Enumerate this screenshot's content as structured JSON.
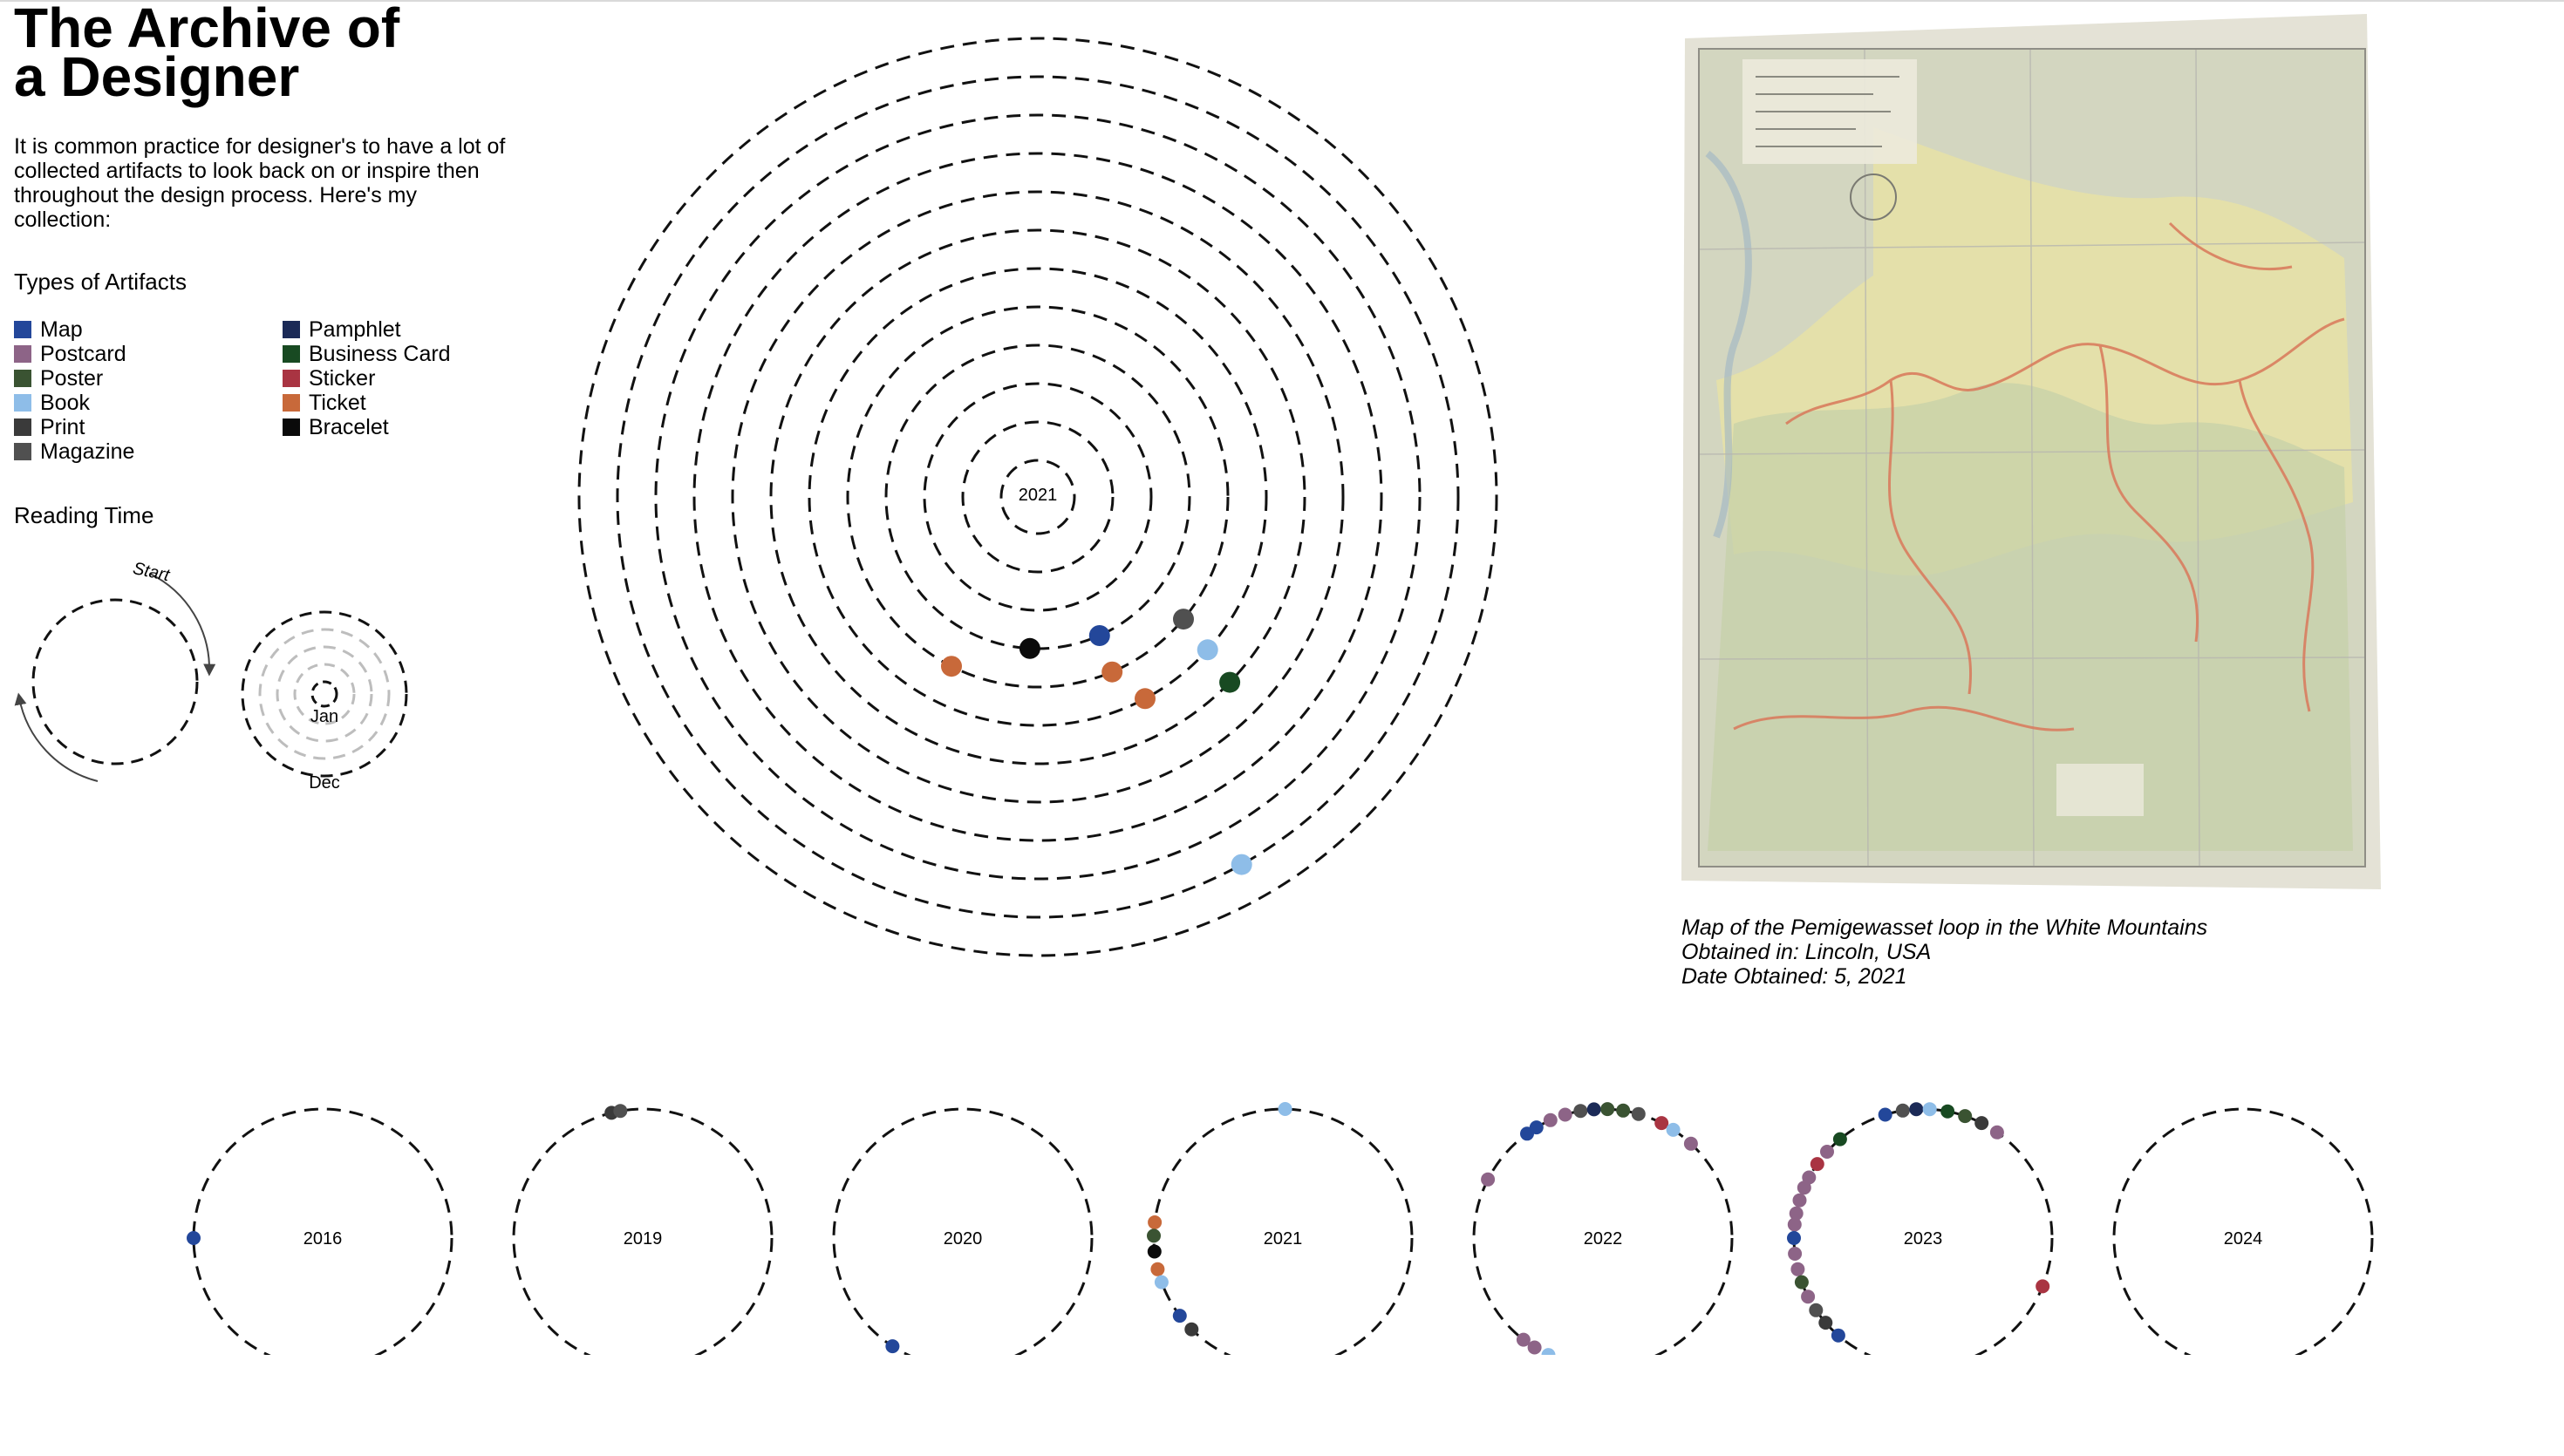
{
  "header": {
    "title_line1": "The Archive of",
    "title_line2": "a Designer",
    "intro": "It is common practice for designer's to have a lot of collected artifacts to look back on or inspire then throughout the design process. Here's my collection:"
  },
  "legend": {
    "heading": "Types of Artifacts",
    "items": [
      {
        "label": "Map",
        "color": "#23479a"
      },
      {
        "label": "Postcard",
        "color": "#8d6487"
      },
      {
        "label": "Poster",
        "color": "#3a5332"
      },
      {
        "label": "Book",
        "color": "#8ebde8"
      },
      {
        "label": "Print",
        "color": "#3a3a3a"
      },
      {
        "label": "Magazine",
        "color": "#505050"
      },
      {
        "label": "Pamphlet",
        "color": "#1b2a57"
      },
      {
        "label": "Business Card",
        "color": "#184a22"
      },
      {
        "label": "Sticker",
        "color": "#a93442"
      },
      {
        "label": "Ticket",
        "color": "#c8693a"
      },
      {
        "label": "Bracelet",
        "color": "#0a0a0a"
      }
    ]
  },
  "reading_time": {
    "heading": "Reading Time",
    "start_label": "Start",
    "jan_label": "Jan",
    "dec_label": "Dec"
  },
  "spiral": {
    "year_label": "2021",
    "ring_count": 12,
    "dots": [
      {
        "type": "Magazine",
        "month": 5,
        "angle_deg": 40
      },
      {
        "type": "Book",
        "month": 6,
        "angle_deg": 42
      },
      {
        "type": "Business Card",
        "month": 7,
        "angle_deg": 44
      },
      {
        "type": "Map",
        "month": 4,
        "angle_deg": 66
      },
      {
        "type": "Ticket",
        "month": 5,
        "angle_deg": 67
      },
      {
        "type": "Ticket",
        "month": 6,
        "angle_deg": 62
      },
      {
        "type": "Ticket",
        "month": 5,
        "angle_deg": 117
      },
      {
        "type": "Bracelet",
        "month": 4,
        "angle_deg": 93
      },
      {
        "type": "Book",
        "month": 11,
        "angle_deg": 61
      }
    ]
  },
  "selected_artifact": {
    "image_alt": "Scanned topographic trail map",
    "caption_title": "Map of the Pemigewasset loop in the White Mountains",
    "caption_location": "Obtained in: Lincoln, USA",
    "caption_date": "Date Obtained: 5, 2021",
    "colors": {
      "paper": "#d8d6c6",
      "green_area": "#c9d2a8",
      "yellow_area": "#e8e3a8",
      "trails": "#d9785a",
      "grid": "#b7b6b0"
    }
  },
  "years": [
    {
      "label": "2016",
      "dots": [
        {
          "type": "Map",
          "angle_deg": 180
        }
      ]
    },
    {
      "label": "2019",
      "dots": [
        {
          "type": "Print",
          "angle_deg": 256
        },
        {
          "type": "Magazine",
          "angle_deg": 260
        }
      ]
    },
    {
      "label": "2020",
      "dots": [
        {
          "type": "Map",
          "angle_deg": 123
        }
      ]
    },
    {
      "label": "2021",
      "dots": [
        {
          "type": "Book",
          "angle_deg": 271
        },
        {
          "type": "Ticket",
          "angle_deg": 187
        },
        {
          "type": "Poster",
          "angle_deg": 181
        },
        {
          "type": "Bracelet",
          "angle_deg": 174
        },
        {
          "type": "Ticket",
          "angle_deg": 166
        },
        {
          "type": "Book",
          "angle_deg": 160
        },
        {
          "type": "Map",
          "angle_deg": 143
        },
        {
          "type": "Print",
          "angle_deg": 135
        }
      ]
    },
    {
      "label": "2022",
      "dots": [
        {
          "type": "Map",
          "angle_deg": 234
        },
        {
          "type": "Map",
          "angle_deg": 239
        },
        {
          "type": "Postcard",
          "angle_deg": 246
        },
        {
          "type": "Postcard",
          "angle_deg": 253
        },
        {
          "type": "Magazine",
          "angle_deg": 260
        },
        {
          "type": "Pamphlet",
          "angle_deg": 266
        },
        {
          "type": "Poster",
          "angle_deg": 272
        },
        {
          "type": "Poster",
          "angle_deg": 279
        },
        {
          "type": "Magazine",
          "angle_deg": 286
        },
        {
          "type": "Sticker",
          "angle_deg": 297
        },
        {
          "type": "Book",
          "angle_deg": 303
        },
        {
          "type": "Postcard",
          "angle_deg": 313
        },
        {
          "type": "Postcard",
          "angle_deg": 207
        },
        {
          "type": "Postcard",
          "angle_deg": 128
        },
        {
          "type": "Postcard",
          "angle_deg": 122
        },
        {
          "type": "Book",
          "angle_deg": 115
        }
      ]
    },
    {
      "label": "2023",
      "dots": [
        {
          "type": "Business Card",
          "angle_deg": 230
        },
        {
          "type": "Postcard",
          "angle_deg": 222
        },
        {
          "type": "Sticker",
          "angle_deg": 215
        },
        {
          "type": "Postcard",
          "angle_deg": 208
        },
        {
          "type": "Postcard",
          "angle_deg": 203
        },
        {
          "type": "Postcard",
          "angle_deg": 197
        },
        {
          "type": "Postcard",
          "angle_deg": 191
        },
        {
          "type": "Postcard",
          "angle_deg": 186
        },
        {
          "type": "Map",
          "angle_deg": 180
        },
        {
          "type": "Postcard",
          "angle_deg": 173
        },
        {
          "type": "Postcard",
          "angle_deg": 166
        },
        {
          "type": "Poster",
          "angle_deg": 160
        },
        {
          "type": "Postcard",
          "angle_deg": 153
        },
        {
          "type": "Magazine",
          "angle_deg": 146
        },
        {
          "type": "Print",
          "angle_deg": 139
        },
        {
          "type": "Map",
          "angle_deg": 131
        },
        {
          "type": "Map",
          "angle_deg": 253
        },
        {
          "type": "Magazine",
          "angle_deg": 261
        },
        {
          "type": "Pamphlet",
          "angle_deg": 267
        },
        {
          "type": "Book",
          "angle_deg": 273
        },
        {
          "type": "Business Card",
          "angle_deg": 281
        },
        {
          "type": "Poster",
          "angle_deg": 289
        },
        {
          "type": "Print",
          "angle_deg": 297
        },
        {
          "type": "Postcard",
          "angle_deg": 305
        },
        {
          "type": "Sticker",
          "angle_deg": 22
        }
      ]
    },
    {
      "label": "2024",
      "dots": []
    }
  ]
}
